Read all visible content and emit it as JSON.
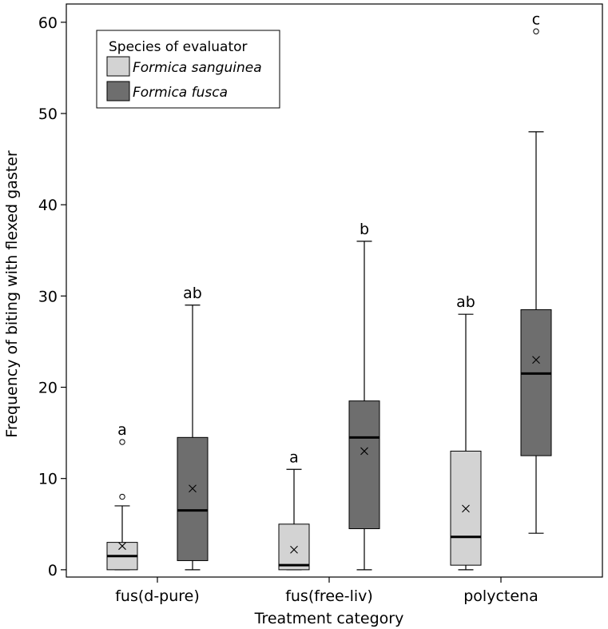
{
  "chart_data": {
    "type": "boxplot",
    "title": "",
    "xlabel": "Treatment category",
    "ylabel": "Frequency of biting with flexed gaster",
    "ylim": [
      -0.8,
      62
    ],
    "yticks": [
      0,
      10,
      20,
      30,
      40,
      50,
      60
    ],
    "categories": [
      "fus(d-pure)",
      "fus(free-liv)",
      "polyctena"
    ],
    "legend": {
      "title": "Species of evaluator",
      "position": "top-left"
    },
    "series": [
      {
        "name": "Formica sanguinea",
        "color": "#d3d3d3",
        "boxes": [
          {
            "category": "fus(d-pure)",
            "whisker_low": 0,
            "q1": 0,
            "median": 1.5,
            "q3": 3,
            "whisker_high": 7,
            "mean": 2.6,
            "outliers": [
              8,
              14
            ],
            "letter": "a"
          },
          {
            "category": "fus(free-liv)",
            "whisker_low": 0,
            "q1": 0,
            "median": 0.5,
            "q3": 5,
            "whisker_high": 11,
            "mean": 2.2,
            "outliers": [],
            "letter": "a"
          },
          {
            "category": "polyctena",
            "whisker_low": 0,
            "q1": 0.5,
            "median": 3.6,
            "q3": 13,
            "whisker_high": 28,
            "mean": 6.7,
            "outliers": [],
            "letter": "ab"
          }
        ]
      },
      {
        "name": "Formica fusca",
        "color": "#6e6e6e",
        "boxes": [
          {
            "category": "fus(d-pure)",
            "whisker_low": 0,
            "q1": 1,
            "median": 6.5,
            "q3": 14.5,
            "whisker_high": 29,
            "mean": 8.9,
            "outliers": [],
            "letter": "ab"
          },
          {
            "category": "fus(free-liv)",
            "whisker_low": 0,
            "q1": 4.5,
            "median": 14.5,
            "q3": 18.5,
            "whisker_high": 36,
            "mean": 13,
            "outliers": [],
            "letter": "b"
          },
          {
            "category": "polyctena",
            "whisker_low": 4,
            "q1": 12.5,
            "median": 21.5,
            "q3": 28.5,
            "whisker_high": 48,
            "mean": 23,
            "outliers": [
              59
            ],
            "letter": "c"
          }
        ]
      }
    ]
  }
}
